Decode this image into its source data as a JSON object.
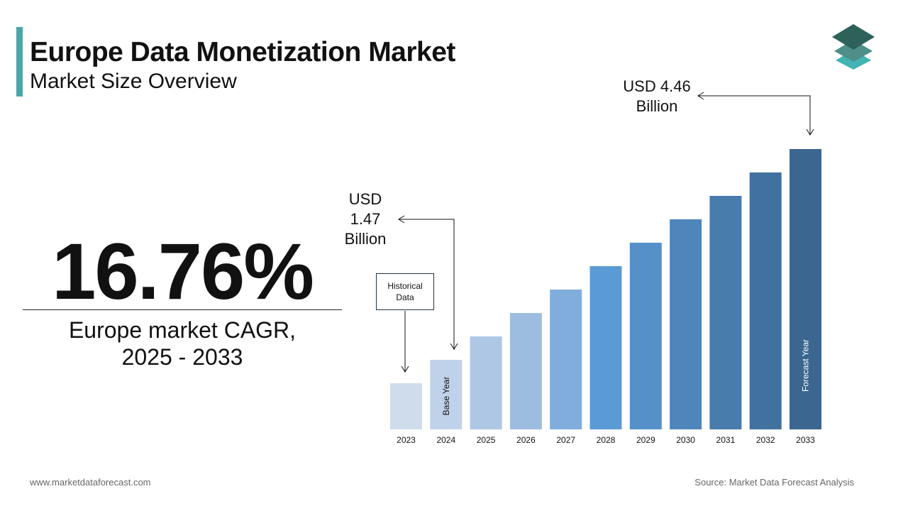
{
  "header": {
    "title": "Europe Data Monetization Market",
    "subtitle": "Market Size Overview"
  },
  "kpi": {
    "value": "16.76%",
    "label_line1": "Europe market CAGR,",
    "label_line2": "2025 - 2033"
  },
  "chart_data": {
    "type": "bar",
    "categories": [
      "2023",
      "2024",
      "2025",
      "2026",
      "2027",
      "2028",
      "2029",
      "2030",
      "2031",
      "2032",
      "2033"
    ],
    "values": [
      null,
      1.47,
      null,
      null,
      null,
      null,
      null,
      null,
      null,
      null,
      4.46
    ],
    "unit": "USD Billion",
    "colors": [
      "#cfdcec",
      "#bfd2e9",
      "#aec7e4",
      "#9dbde0",
      "#80addc",
      "#5b9bd5",
      "#5591c8",
      "#4e86bb",
      "#477cad",
      "#40719f",
      "#3a6690"
    ],
    "bar_labels": {
      "2024": "Base Year",
      "2033": "Forecast Year"
    },
    "annotations": {
      "start": {
        "line1": "USD",
        "line2": "1.47",
        "line3": "Billion"
      },
      "end": {
        "line1": "USD 4.46",
        "line2": "Billion"
      },
      "historical": {
        "line1": "Historical",
        "line2": "Data"
      }
    },
    "grid": false,
    "legend": "none"
  },
  "footer": {
    "website": "www.marketdataforecast.com",
    "source": "Source: Market Data Forecast Analysis"
  },
  "logo": {
    "colors": [
      "#2e6159",
      "#4e8f8a",
      "#43b3b3"
    ]
  }
}
